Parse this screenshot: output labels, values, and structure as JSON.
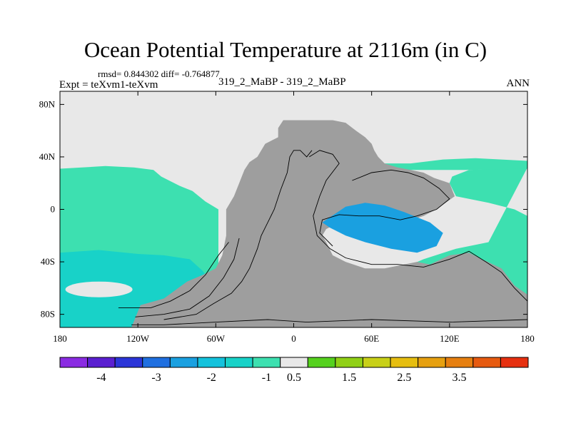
{
  "header": {
    "title": "Ocean Potential Temperature at 2116m (in C)",
    "stats": "rmsd= 0.844302 diff= -0.764877",
    "expt": "Expt = teXvm1-teXvm",
    "cases": "319_2_MaBP - 319_2_MaBP",
    "season": "ANN"
  },
  "chart_data": {
    "type": "heatmap",
    "projection": "cylindrical-equidistant",
    "center_longitude": 0,
    "title": "Ocean Potential Temperature at 2116m (in C)",
    "xlim": [
      -180,
      180
    ],
    "ylim": [
      -90,
      90
    ],
    "x_ticks": [
      {
        "value": -180,
        "label": "180"
      },
      {
        "value": -120,
        "label": "120W"
      },
      {
        "value": -60,
        "label": "60W"
      },
      {
        "value": 0,
        "label": "0"
      },
      {
        "value": 60,
        "label": "60E"
      },
      {
        "value": 120,
        "label": "120E"
      },
      {
        "value": 180,
        "label": "180"
      }
    ],
    "y_ticks": [
      {
        "value": 80,
        "label": "80N"
      },
      {
        "value": 40,
        "label": "40N"
      },
      {
        "value": 0,
        "label": "0"
      },
      {
        "value": -40,
        "label": "40S"
      },
      {
        "value": -80,
        "label": "80S"
      }
    ],
    "land_color": "#9e9e9e",
    "colorbar": {
      "colors": [
        "#8a2be2",
        "#5a1fd0",
        "#2b35d8",
        "#1f6fe0",
        "#1aa0e0",
        "#14c2dc",
        "#18d2c8",
        "#3de0b0",
        "#e8e8e8",
        "#55d11e",
        "#90d016",
        "#c8d018",
        "#e6be10",
        "#e6a010",
        "#e67f10",
        "#e65a10",
        "#e63010"
      ],
      "labels": [
        "-4",
        "-3",
        "-2",
        "-1",
        "0.5",
        "1.5",
        "2.5",
        "3.5"
      ]
    },
    "regions": [
      {
        "name": "north-background",
        "value": 0,
        "color": "#e8e8e8"
      },
      {
        "name": "pacific-south-band",
        "value": -1,
        "color": "#3de0b0"
      },
      {
        "name": "southern-ocean-band",
        "value": -2,
        "color": "#18d2c8"
      },
      {
        "name": "south-pacific-patch",
        "value": 0,
        "color": "#e8e8e8"
      },
      {
        "name": "tethys-anomaly",
        "value": -2,
        "color": "#1aa0e0"
      },
      {
        "name": "east-ocean-band",
        "value": -1,
        "color": "#3de0b0"
      }
    ]
  }
}
